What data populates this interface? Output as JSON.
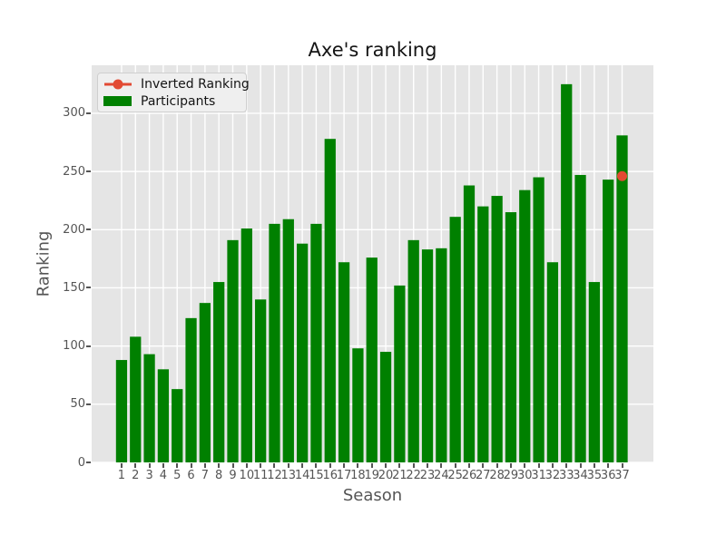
{
  "chart_data": {
    "type": "bar",
    "title": "Axe's ranking",
    "xlabel": "Season",
    "ylabel": "Ranking",
    "categories": [
      1,
      2,
      3,
      4,
      5,
      6,
      7,
      8,
      9,
      10,
      11,
      12,
      13,
      14,
      15,
      16,
      17,
      18,
      19,
      20,
      21,
      22,
      23,
      24,
      25,
      26,
      27,
      28,
      29,
      30,
      31,
      32,
      33,
      34,
      35,
      36,
      37
    ],
    "series": [
      {
        "name": "Inverted Ranking",
        "type": "line",
        "color": "#e24a33",
        "marker": "circle",
        "points": [
          {
            "x": 37,
            "y": 246
          }
        ]
      },
      {
        "name": "Participants",
        "type": "bar",
        "color": "#008000",
        "values": [
          88,
          108,
          93,
          80,
          63,
          124,
          137,
          155,
          191,
          201,
          140,
          205,
          209,
          188,
          205,
          278,
          172,
          98,
          176,
          95,
          152,
          191,
          183,
          184,
          211,
          238,
          220,
          229,
          215,
          234,
          245,
          172,
          325,
          247,
          155,
          243,
          281
        ]
      }
    ],
    "xlim": [
      -1.15,
      39.25
    ],
    "ylim": [
      0,
      341.25
    ],
    "yticks": [
      0,
      50,
      100,
      150,
      200,
      250,
      300
    ],
    "grid": true,
    "legend_position": "upper left"
  },
  "style": {
    "figure_bg": "#ffffff",
    "plot_bg": "#e5e5e5",
    "grid_color": "#ffffff",
    "tick_color": "#555555",
    "title_color": "#141414",
    "bar_color": "#008000",
    "line_color": "#e24a33"
  }
}
